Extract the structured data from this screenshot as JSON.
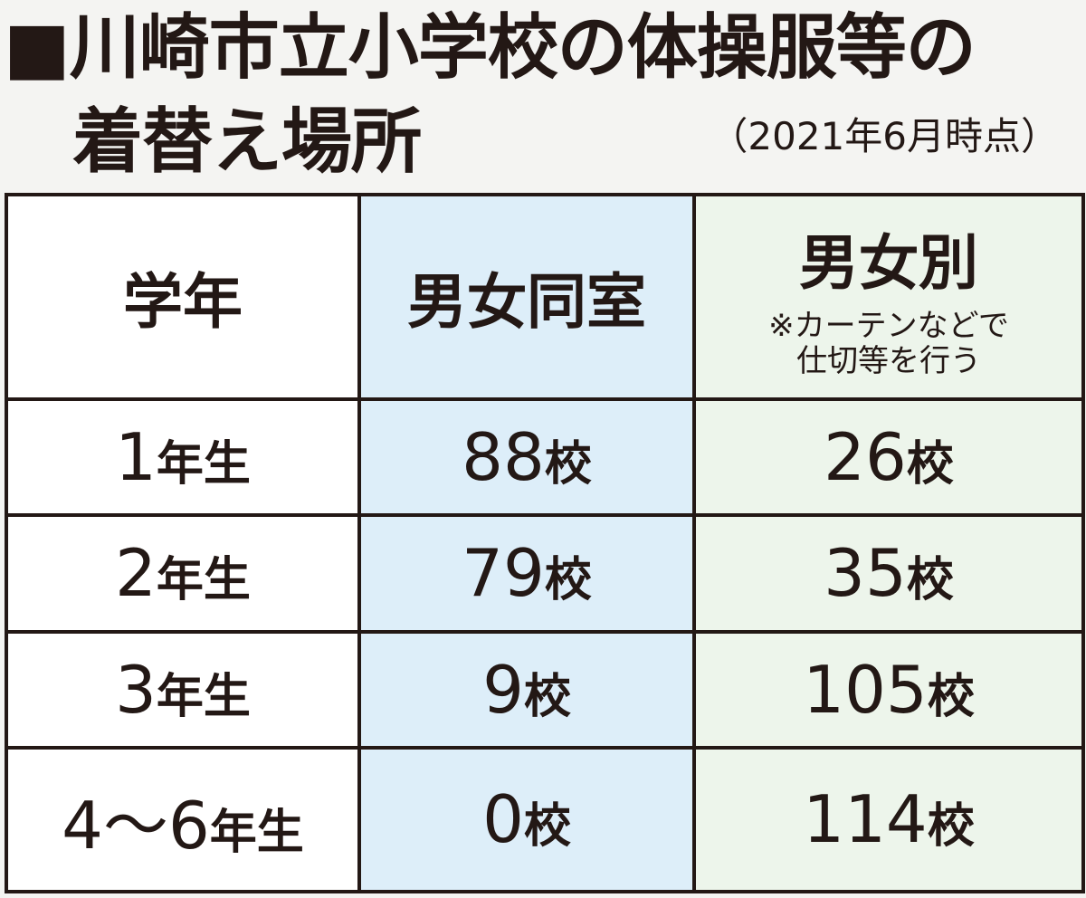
{
  "header": {
    "title": [
      "■川崎市立小学校の体操服等の",
      "着替え場所"
    ],
    "note": "（2021年6月時点）"
  },
  "table": {
    "columns": [
      {
        "label": "学年"
      },
      {
        "label": "男女同室"
      },
      {
        "label": "男女別",
        "note": [
          "※カーテンなどで",
          "仕切等を行う"
        ]
      }
    ],
    "rows": [
      [
        {
          "text": "1",
          "unit": "年生"
        },
        {
          "text": "88",
          "unit": "校"
        },
        {
          "text": "26",
          "unit": "校"
        }
      ],
      [
        {
          "text": "2",
          "unit": "年生"
        },
        {
          "text": "79",
          "unit": "校"
        },
        {
          "text": "35",
          "unit": "校"
        }
      ],
      [
        {
          "text": "3",
          "unit": "年生"
        },
        {
          "text": "9",
          "unit": "校"
        },
        {
          "text": "105",
          "unit": "校"
        }
      ],
      [
        {
          "text": "4〜6",
          "unit": "年生"
        },
        {
          "text": "0",
          "unit": "校"
        },
        {
          "text": "114",
          "unit": "校"
        }
      ]
    ]
  }
}
